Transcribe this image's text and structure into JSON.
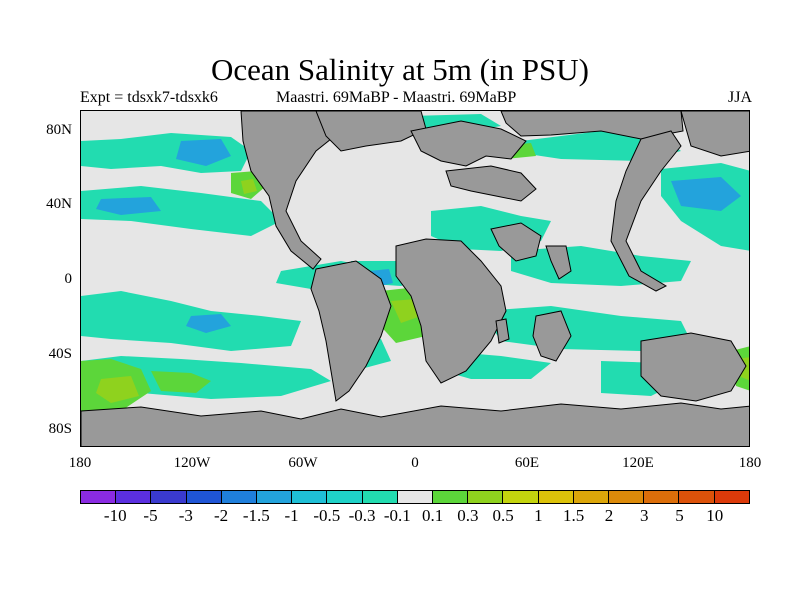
{
  "title": "Ocean Salinity at 5m (in PSU)",
  "subtitle_left": "Expt = tdsxk7-tdsxk6",
  "subtitle_center": "Maastri.  69MaBP - Maastri.  69MaBP",
  "subtitle_right": "JJA",
  "y_labels": [
    "80N",
    "40N",
    "0",
    "40S",
    "80S"
  ],
  "x_labels": [
    "180",
    "120W",
    "60W",
    "0",
    "60E",
    "120E",
    "180"
  ],
  "colorbar": {
    "colors": [
      "#8a2be2",
      "#5b2fe0",
      "#3a3acf",
      "#1f55d6",
      "#1f7fdc",
      "#23a3dc",
      "#1fbfd6",
      "#1fd2c8",
      "#22dcb0",
      "#e6e6e6",
      "#5cd63a",
      "#8fd21e",
      "#c4d40e",
      "#dcc20a",
      "#dca60a",
      "#dc8a0a",
      "#dc6e0a",
      "#dc520a",
      "#dc3a0a"
    ],
    "labels": [
      "-10",
      "-5",
      "-3",
      "-2",
      "-1.5",
      "-1",
      "-0.5",
      "-0.3",
      "-0.1",
      "0.1",
      "0.3",
      "0.5",
      "1",
      "1.5",
      "2",
      "3",
      "5",
      "10"
    ]
  },
  "map_colors": {
    "land": "#999999",
    "ocean_neutral": "#e6e6e6",
    "teal": "#22dcb0",
    "cyan": "#1fd2c8",
    "blue": "#23a3dc",
    "green": "#5cd63a",
    "lime": "#8fd21e",
    "yellow": "#c4d40e"
  }
}
